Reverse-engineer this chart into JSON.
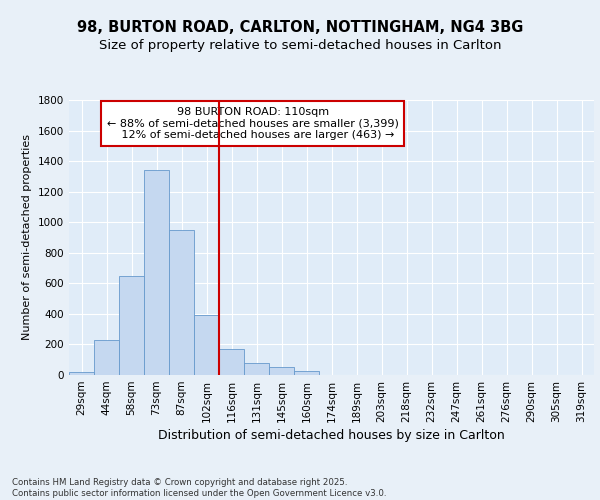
{
  "title_line1": "98, BURTON ROAD, CARLTON, NOTTINGHAM, NG4 3BG",
  "title_line2": "Size of property relative to semi-detached houses in Carlton",
  "xlabel": "Distribution of semi-detached houses by size in Carlton",
  "ylabel": "Number of semi-detached properties",
  "bin_labels": [
    "29sqm",
    "44sqm",
    "58sqm",
    "73sqm",
    "87sqm",
    "102sqm",
    "116sqm",
    "131sqm",
    "145sqm",
    "160sqm",
    "174sqm",
    "189sqm",
    "203sqm",
    "218sqm",
    "232sqm",
    "247sqm",
    "261sqm",
    "276sqm",
    "290sqm",
    "305sqm",
    "319sqm"
  ],
  "bar_values": [
    20,
    230,
    645,
    1345,
    950,
    390,
    170,
    80,
    50,
    25,
    0,
    0,
    0,
    0,
    0,
    0,
    0,
    0,
    0,
    0,
    0
  ],
  "bar_color": "#c5d8f0",
  "bar_edge_color": "#6699cc",
  "vline_x_idx": 5.5,
  "vline_color": "#cc0000",
  "annotation_text": "98 BURTON ROAD: 110sqm\n← 88% of semi-detached houses are smaller (3,399)\n   12% of semi-detached houses are larger (463) →",
  "annotation_box_edgecolor": "#cc0000",
  "annotation_box_facecolor": "#ffffff",
  "ylim": [
    0,
    1800
  ],
  "yticks": [
    0,
    200,
    400,
    600,
    800,
    1000,
    1200,
    1400,
    1600,
    1800
  ],
  "bg_color": "#e8f0f8",
  "plot_bg_color": "#e0ecf8",
  "footnote": "Contains HM Land Registry data © Crown copyright and database right 2025.\nContains public sector information licensed under the Open Government Licence v3.0.",
  "title_fontsize": 10.5,
  "subtitle_fontsize": 9.5,
  "axis_label_fontsize": 9,
  "tick_fontsize": 7.5,
  "annotation_fontsize": 8,
  "ylabel_fontsize": 8
}
